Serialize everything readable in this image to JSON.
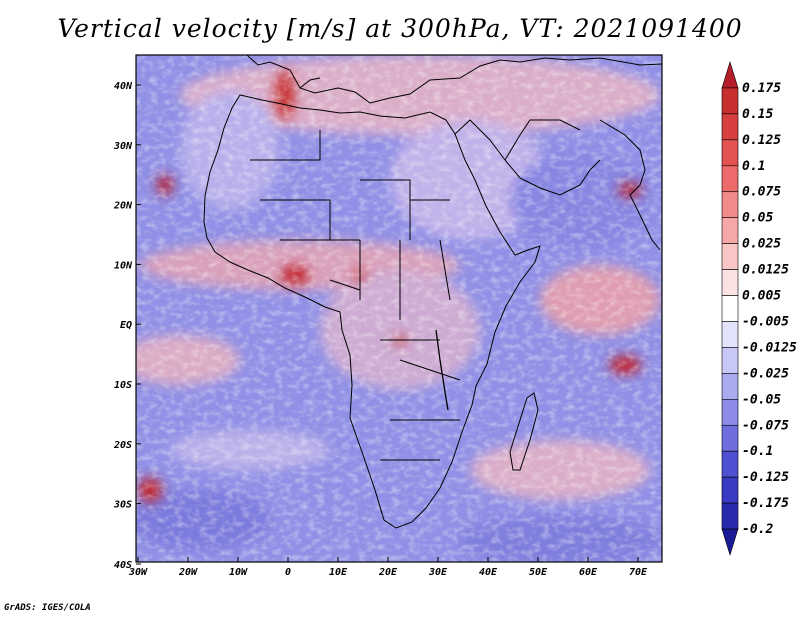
{
  "title": "Vertical velocity [m/s] at 300hPa, VT: 2021091400",
  "credit": "GrADS: IGES/COLA",
  "map": {
    "lon_range": [
      -30,
      75
    ],
    "lat_range": [
      -40,
      45
    ],
    "lon_ticks": [
      "30W",
      "20W",
      "10W",
      "0",
      "10E",
      "20E",
      "30E",
      "40E",
      "50E",
      "60E",
      "70E"
    ],
    "lat_ticks": [
      "40N",
      "30N",
      "20N",
      "10N",
      "EQ",
      "10S",
      "20S",
      "30S",
      "40S"
    ]
  },
  "colorbar": {
    "labels": [
      "0.175",
      "0.15",
      "0.125",
      "0.1",
      "0.075",
      "0.05",
      "0.025",
      "0.0125",
      "0.005",
      "-0.005",
      "-0.0125",
      "-0.025",
      "-0.05",
      "-0.075",
      "-0.1",
      "-0.125",
      "-0.175",
      "-0.2"
    ],
    "colors": [
      "#b51d2a",
      "#c83030",
      "#d84040",
      "#e45252",
      "#ec6a6a",
      "#f28a8a",
      "#f6a8a8",
      "#f9c6c6",
      "#fce2e2",
      "#ffffff",
      "#e3e3fb",
      "#c8c8f6",
      "#aaaaf0",
      "#8c8ce8",
      "#6e6ede",
      "#5050d2",
      "#3a3ac4",
      "#2a2aae",
      "#1a1a96"
    ]
  }
}
